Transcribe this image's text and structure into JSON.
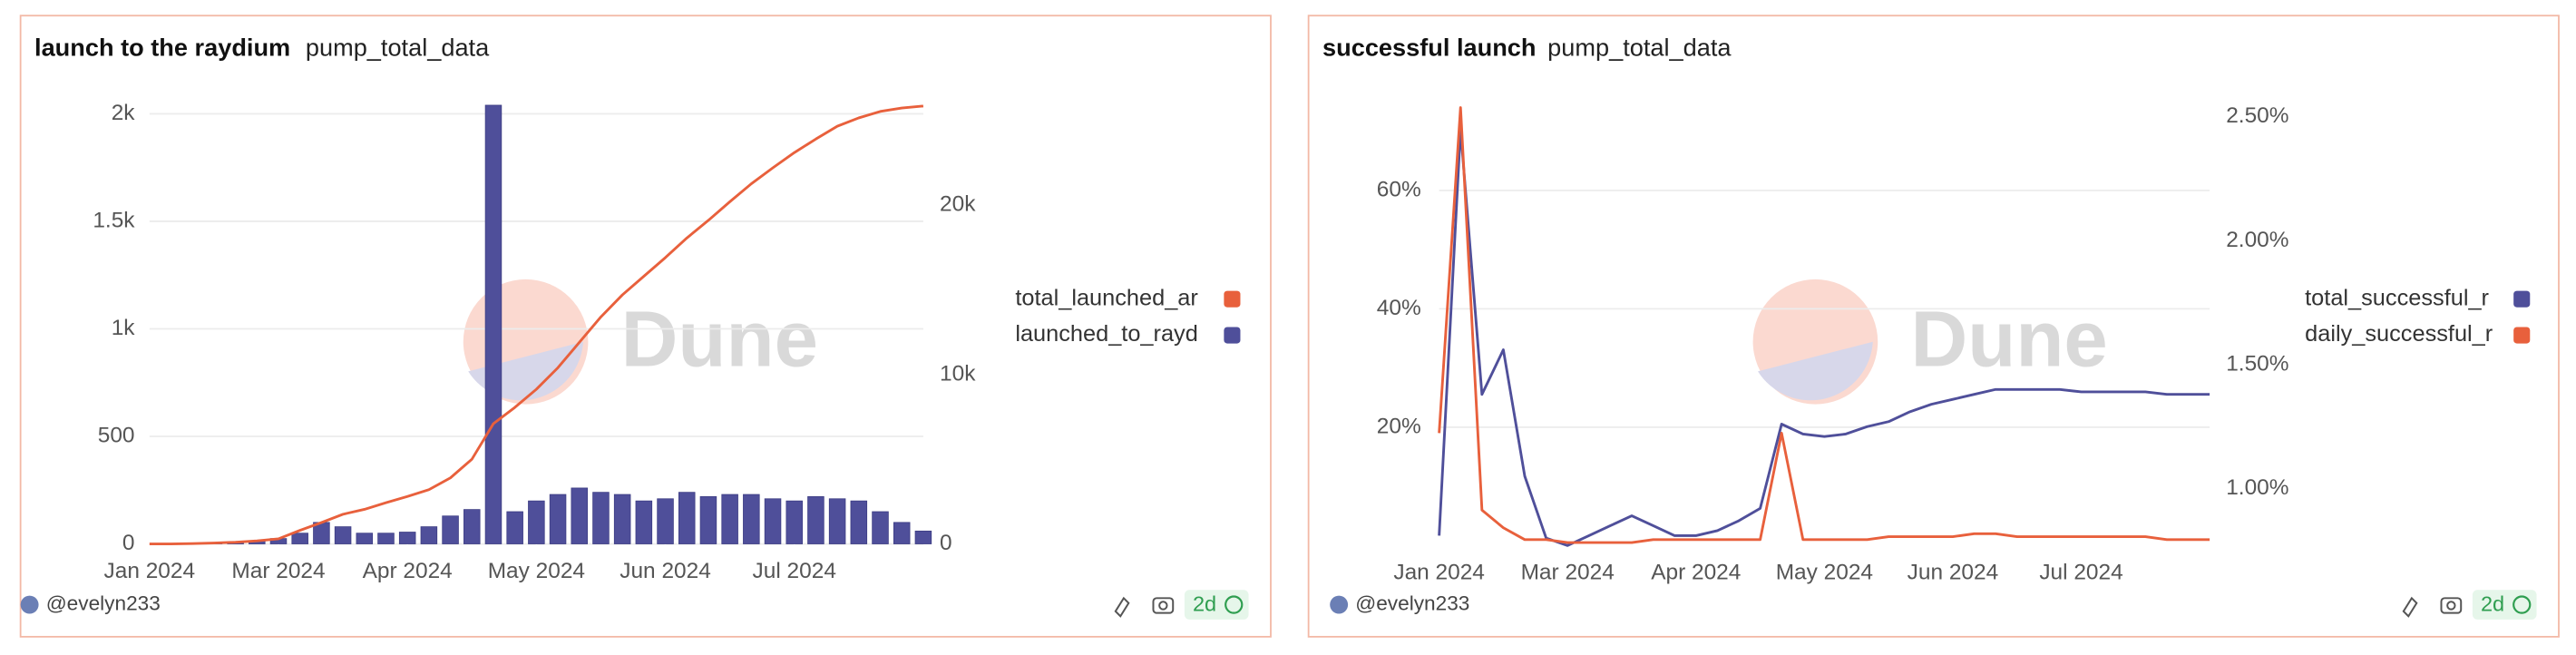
{
  "chart_data": [
    {
      "type": "bar",
      "title": "launch to the raydium",
      "subtitle": "pump_total_data",
      "watermark": "Dune",
      "categories": [
        "Jan 2024",
        null,
        null,
        null,
        null,
        null,
        "Mar 2024",
        null,
        null,
        null,
        null,
        null,
        "Apr 2024",
        null,
        null,
        null,
        null,
        null,
        "May 2024",
        null,
        null,
        null,
        null,
        null,
        "Jun 2024",
        null,
        null,
        null,
        null,
        null,
        "Jul 2024",
        null,
        null,
        null,
        null,
        null,
        null
      ],
      "series": [
        {
          "name": "total_launched_ar",
          "color": "#e8603c",
          "type": "line",
          "axis": "y2",
          "values": [
            0,
            0,
            20,
            50,
            100,
            180,
            300,
            800,
            1260,
            1750,
            2040,
            2430,
            2800,
            3200,
            3900,
            5000,
            7100,
            8060,
            9130,
            10400,
            11900,
            13400,
            14700,
            15800,
            16900,
            18060,
            19100,
            20200,
            21260,
            22200,
            23100,
            23900,
            24660,
            25150,
            25530,
            25730,
            25850
          ]
        },
        {
          "name": "launched_to_rayd",
          "color": "#4f4f9a",
          "type": "bar",
          "values": [
            0,
            0,
            0,
            2,
            8,
            15,
            25,
            50,
            100,
            80,
            50,
            50,
            55,
            80,
            130,
            160,
            2040,
            150,
            200,
            230,
            260,
            240,
            230,
            200,
            210,
            240,
            220,
            230,
            230,
            210,
            200,
            220,
            210,
            200,
            150,
            100,
            60
          ]
        }
      ],
      "ylim": [
        0,
        2040
      ],
      "yticks": [
        0,
        500,
        {
          "value": 1000,
          "label": "1k"
        },
        {
          "value": 1500,
          "label": "1.5k"
        },
        {
          "value": 2000,
          "label": "2k"
        }
      ],
      "y2lim": [
        0,
        25900
      ],
      "y2ticks": [
        0,
        {
          "value": 10000,
          "label": "10k"
        },
        {
          "value": 20000,
          "label": "20k"
        }
      ],
      "grid": true,
      "legend": "right"
    },
    {
      "type": "line",
      "title": "successful launch",
      "subtitle": "pump_total_data",
      "watermark": "Dune",
      "categories": [
        "Jan 2024",
        null,
        null,
        null,
        null,
        null,
        "Mar 2024",
        null,
        null,
        null,
        null,
        null,
        "Apr 2024",
        null,
        null,
        null,
        null,
        null,
        "May 2024",
        null,
        null,
        null,
        null,
        null,
        "Jun 2024",
        null,
        null,
        null,
        null,
        null,
        "Jul 2024",
        null,
        null,
        null,
        null,
        null,
        null
      ],
      "series": [
        {
          "name": "total_successful_r",
          "color": "#4f4f9a",
          "type": "line",
          "axis": "y2",
          "values": [
            0.81,
            2.45,
            1.38,
            1.56,
            1.05,
            0.8,
            0.77,
            0.81,
            0.85,
            0.89,
            0.85,
            0.81,
            0.81,
            0.83,
            0.87,
            0.92,
            1.26,
            1.22,
            1.21,
            1.22,
            1.25,
            1.27,
            1.31,
            1.34,
            1.36,
            1.38,
            1.4,
            1.4,
            1.4,
            1.4,
            1.39,
            1.39,
            1.39,
            1.39,
            1.38,
            1.38,
            1.38
          ]
        },
        {
          "name": "daily_successful_r",
          "color": "#e8603c",
          "type": "line",
          "values": [
            19,
            74,
            6,
            3,
            1,
            1,
            0.5,
            0.5,
            0.5,
            0.5,
            1,
            1,
            1,
            1,
            1,
            1,
            19,
            1,
            1,
            1,
            1,
            1.5,
            1.5,
            1.5,
            1.5,
            2,
            2,
            1.5,
            1.5,
            1.5,
            1.5,
            1.5,
            1.5,
            1.5,
            1,
            1,
            1
          ]
        }
      ],
      "ylim": [
        0,
        74.4
      ],
      "yticks": [
        {
          "value": 20,
          "label": "20%"
        },
        {
          "value": 40,
          "label": "40%"
        },
        {
          "value": 60,
          "label": "60%"
        }
      ],
      "y2lim": [
        0.77,
        2.547
      ],
      "y2ticks": [
        {
          "value": 1.0,
          "label": "1.00%"
        },
        {
          "value": 1.5,
          "label": "1.50%"
        },
        {
          "value": 2.0,
          "label": "2.00%"
        },
        {
          "value": 2.5,
          "label": "2.50%"
        }
      ],
      "grid": true,
      "legend": "right"
    }
  ],
  "panels": [
    {
      "author": "@evelyn233",
      "badge": "2d"
    },
    {
      "author": "@evelyn233",
      "badge": "2d"
    }
  ]
}
